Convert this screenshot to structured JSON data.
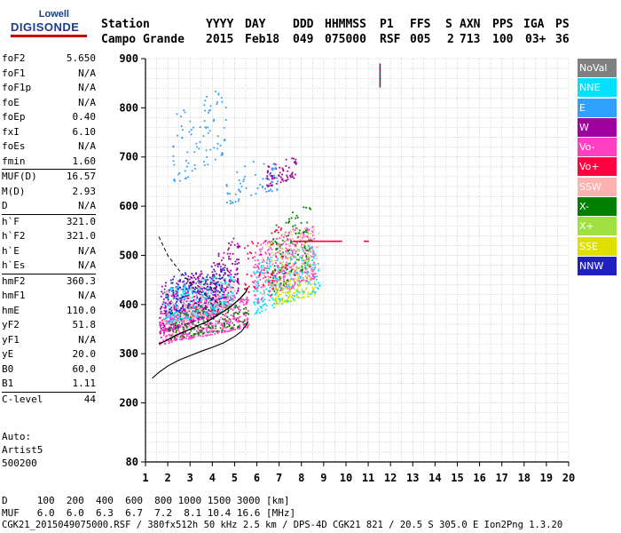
{
  "logo": {
    "line1": "Lowell",
    "line2": "DIGISONDE"
  },
  "header": {
    "row1": [
      "Station",
      "YYYY",
      "DAY",
      "DDD",
      "HHMMSS",
      "P1",
      "FFS",
      "S",
      "AXN",
      "PPS",
      "IGA",
      "PS"
    ],
    "row2": [
      "Campo Grande",
      "2015",
      "Feb18",
      "049",
      "075000",
      "RSF",
      "005",
      "2",
      "713",
      "100",
      "03+",
      "36"
    ]
  },
  "params": [
    {
      "k": "foF2",
      "v": "5.650"
    },
    {
      "k": "foF1",
      "v": "N/A"
    },
    {
      "k": "foF1p",
      "v": "N/A"
    },
    {
      "k": "foE",
      "v": "N/A"
    },
    {
      "k": "foEp",
      "v": "0.40"
    },
    {
      "k": "fxI",
      "v": "6.10"
    },
    {
      "k": "foEs",
      "v": "N/A"
    },
    {
      "k": "fmin",
      "v": "1.60"
    },
    {
      "sep": true
    },
    {
      "k": "MUF(D)",
      "v": "16.57"
    },
    {
      "k": "M(D)",
      "v": "2.93"
    },
    {
      "k": "D",
      "v": "N/A"
    },
    {
      "sep": true
    },
    {
      "k": "h`F",
      "v": "321.0"
    },
    {
      "k": "h`F2",
      "v": "321.0"
    },
    {
      "k": "h`E",
      "v": "N/A"
    },
    {
      "k": "h`Es",
      "v": "N/A"
    },
    {
      "sep": true
    },
    {
      "k": "hmF2",
      "v": "360.3"
    },
    {
      "k": "hmF1",
      "v": "N/A"
    },
    {
      "k": "hmE",
      "v": "110.0"
    },
    {
      "k": "yF2",
      "v": "51.8"
    },
    {
      "k": "yF1",
      "v": "N/A"
    },
    {
      "k": "yE",
      "v": "20.0"
    },
    {
      "k": "B0",
      "v": "60.0"
    },
    {
      "k": "B1",
      "v": "1.11"
    },
    {
      "sep": true
    },
    {
      "k": "C-level",
      "v": "44"
    }
  ],
  "auto": [
    "Auto:",
    "Artist5",
    "500200"
  ],
  "footer": {
    "d_row": "D     100  200  400  600  800 1000 1500 3000 [km]",
    "muf_row": "MUF   6.0  6.0  6.3  6.7  7.2  8.1 10.4 16.6 [MHz]",
    "file_row": "CGK21_2015049075000.RSF / 380fx512h 50 kHz 2.5 km / DPS-4D CGK21 821 / 20.5 S 305.0 E Ion2Png 1.3.20"
  },
  "legend": [
    {
      "label": "NoVal",
      "color": "#808080"
    },
    {
      "label": "NNE",
      "color": "#00e0ff"
    },
    {
      "label": "E",
      "color": "#30a0ff"
    },
    {
      "label": "W",
      "color": "#a000a0"
    },
    {
      "label": "Vo-",
      "color": "#ff40c0"
    },
    {
      "label": "Vo+",
      "color": "#ff0040"
    },
    {
      "label": "SSW",
      "color": "#ffb0b0"
    },
    {
      "label": "X-",
      "color": "#008000"
    },
    {
      "label": "X+",
      "color": "#a0e040"
    },
    {
      "label": "SSE",
      "color": "#e0e000"
    },
    {
      "label": "NNW",
      "color": "#2020c0"
    }
  ],
  "chart_data": {
    "type": "scatter",
    "xlim": [
      1,
      20
    ],
    "ylim": [
      80,
      900
    ],
    "x_ticks": [
      "1",
      "2",
      "3",
      "4",
      "5",
      "6",
      "7",
      "8",
      "9",
      "10",
      "11",
      "12",
      "13",
      "14",
      "15",
      "16",
      "17",
      "18",
      "19",
      "20"
    ],
    "y_ticks": [
      {
        "label": "900",
        "value": 900
      },
      {
        "label": "800",
        "value": 800
      },
      {
        "label": "700",
        "value": 700
      },
      {
        "label": "600",
        "value": 600
      },
      {
        "label": "500",
        "value": 500
      },
      {
        "label": "400",
        "value": 400
      },
      {
        "label": "300",
        "value": 300
      },
      {
        "label": "200",
        "value": 200
      },
      {
        "label": "80",
        "value": 80
      }
    ],
    "grid": true,
    "clusters": [
      {
        "series": "W",
        "x": [
          1.6,
          4.2
        ],
        "y": [
          340,
          470
        ],
        "n": 420
      },
      {
        "series": "W",
        "x": [
          4.0,
          5.2
        ],
        "y": [
          370,
          540
        ],
        "n": 150
      },
      {
        "series": "W",
        "x": [
          6.4,
          7.8
        ],
        "y": [
          640,
          700
        ],
        "n": 70
      },
      {
        "series": "Vo-",
        "x": [
          1.6,
          5.6
        ],
        "y": [
          320,
          420
        ],
        "n": 500
      },
      {
        "series": "Vo-",
        "x": [
          5.8,
          8.6
        ],
        "y": [
          400,
          560
        ],
        "n": 320
      },
      {
        "series": "NNE",
        "x": [
          1.8,
          5.0
        ],
        "y": [
          360,
          460
        ],
        "n": 280
      },
      {
        "series": "NNE",
        "x": [
          5.8,
          8.8
        ],
        "y": [
          380,
          520
        ],
        "n": 220
      },
      {
        "series": "E",
        "x": [
          2.2,
          4.6
        ],
        "y": [
          640,
          840
        ],
        "n": 90
      },
      {
        "series": "E",
        "x": [
          4.6,
          7.0
        ],
        "y": [
          600,
          700
        ],
        "n": 60
      },
      {
        "series": "X-",
        "x": [
          2.0,
          5.6
        ],
        "y": [
          330,
          410
        ],
        "n": 160
      },
      {
        "series": "X-",
        "x": [
          6.6,
          8.4
        ],
        "y": [
          420,
          600
        ],
        "n": 120
      },
      {
        "series": "SSW",
        "x": [
          1.8,
          5.0
        ],
        "y": [
          360,
          450
        ],
        "n": 160
      },
      {
        "series": "SSW",
        "x": [
          6.2,
          8.8
        ],
        "y": [
          420,
          560
        ],
        "n": 120
      },
      {
        "series": "X+",
        "x": [
          6.4,
          8.4
        ],
        "y": [
          440,
          560
        ],
        "n": 70
      },
      {
        "series": "SSE",
        "x": [
          6.8,
          8.6
        ],
        "y": [
          400,
          460
        ],
        "n": 110
      },
      {
        "series": "NNW",
        "x": [
          1.8,
          4.6
        ],
        "y": [
          380,
          480
        ],
        "n": 120
      },
      {
        "series": "Vo+",
        "x": [
          5.4,
          7.4
        ],
        "y": [
          420,
          560
        ],
        "n": 60
      }
    ],
    "es_trace": {
      "series": "Vo+",
      "x": [
        7.6,
        11.0
      ],
      "y": 530
    },
    "spike": {
      "x": 11.5,
      "y": [
        845,
        890
      ]
    },
    "hf_trace": {
      "x": [
        1.6,
        1.9,
        2.3,
        2.8,
        3.3,
        3.8,
        4.3,
        4.8,
        5.2,
        5.5,
        5.6
      ],
      "y": [
        320,
        326,
        336,
        346,
        356,
        366,
        380,
        395,
        410,
        425,
        435
      ]
    },
    "profile": {
      "x": [
        1.3,
        1.6,
        2.0,
        2.5,
        3.0,
        3.5,
        4.0,
        4.5,
        5.0,
        5.3,
        5.5,
        5.6
      ],
      "y": [
        250,
        262,
        275,
        287,
        296,
        305,
        313,
        322,
        335,
        345,
        357,
        365
      ]
    },
    "profile_upper": {
      "x": [
        1.6,
        2.0,
        2.5,
        3.0,
        3.5,
        4.0,
        4.4
      ],
      "y": [
        538,
        500,
        470,
        445,
        425,
        410,
        400
      ]
    }
  }
}
